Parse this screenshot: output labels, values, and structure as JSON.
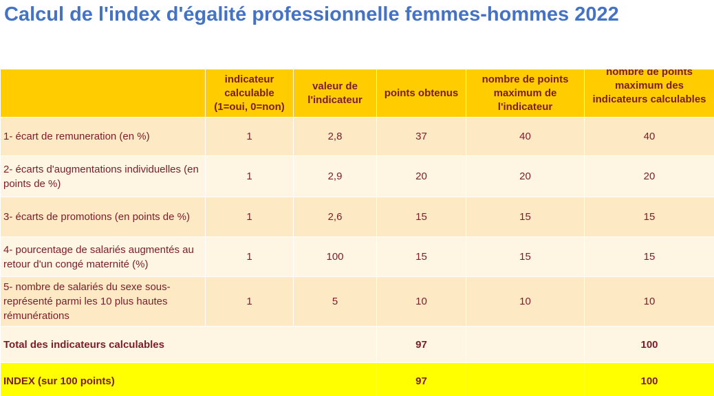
{
  "title": "Calcul de l'index d'égalité professionnelle femmes-hommes 2022",
  "table": {
    "headers": [
      "",
      "indicateur calculable (1=oui, 0=non)",
      "valeur de l'indicateur",
      "points obtenus",
      "nombre de points maximum de l'indicateur",
      "nombre de points maximum des indicateurs calculables"
    ],
    "rows": [
      {
        "label": "1- écart de remuneration (en %)",
        "calculable": "1",
        "valeur": "2,8",
        "points": "37",
        "max_indicateur": "40",
        "max_calculables": "40"
      },
      {
        "label": "2- écarts d'augmentations individuelles (en points de %)",
        "calculable": "1",
        "valeur": "2,9",
        "points": "20",
        "max_indicateur": "20",
        "max_calculables": "20"
      },
      {
        "label": "3- écarts de promotions (en points de %)",
        "calculable": "1",
        "valeur": "2,6",
        "points": "15",
        "max_indicateur": "15",
        "max_calculables": "15"
      },
      {
        "label": "4- pourcentage de salariés augmentés au retour d'un congé maternité (%)",
        "calculable": "1",
        "valeur": "100",
        "points": "15",
        "max_indicateur": "15",
        "max_calculables": "15"
      },
      {
        "label": "5- nombre de salariés du sexe sous-représenté parmi les 10 plus hautes rémunérations",
        "calculable": "1",
        "valeur": "5",
        "points": "10",
        "max_indicateur": "10",
        "max_calculables": "10"
      }
    ],
    "total": {
      "label": "Total des indicateurs calculables",
      "points": "97",
      "max_calculables": "100"
    },
    "index": {
      "label": "INDEX (sur 100 points)",
      "points": "97",
      "max_calculables": "100"
    }
  },
  "colors": {
    "title": "#4472c4",
    "header_bg": "#ffcc00",
    "row_dark": "#fde9c3",
    "row_light": "#fef5e3",
    "index_bg": "#ffff00",
    "text": "#7b1c2b"
  }
}
